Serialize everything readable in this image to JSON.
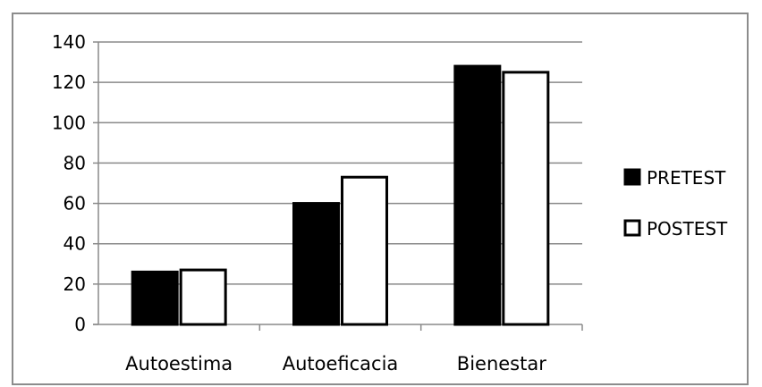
{
  "chart_data": {
    "type": "bar",
    "title": "",
    "xlabel": "",
    "ylabel": "",
    "categories": [
      "Autoestima",
      "Autoeficacia",
      "Bienestar"
    ],
    "series": [
      {
        "name": "PRETEST",
        "values": [
          26,
          60,
          128
        ],
        "color": "#000000"
      },
      {
        "name": "POSTEST",
        "values": [
          27,
          73,
          125
        ],
        "color": "#ffffff"
      }
    ],
    "ylim": [
      0,
      140
    ],
    "yticks": [
      "0",
      "20",
      "40",
      "60",
      "80",
      "100",
      "120",
      "140"
    ],
    "grid": "horizontal",
    "legend_position": "right"
  }
}
